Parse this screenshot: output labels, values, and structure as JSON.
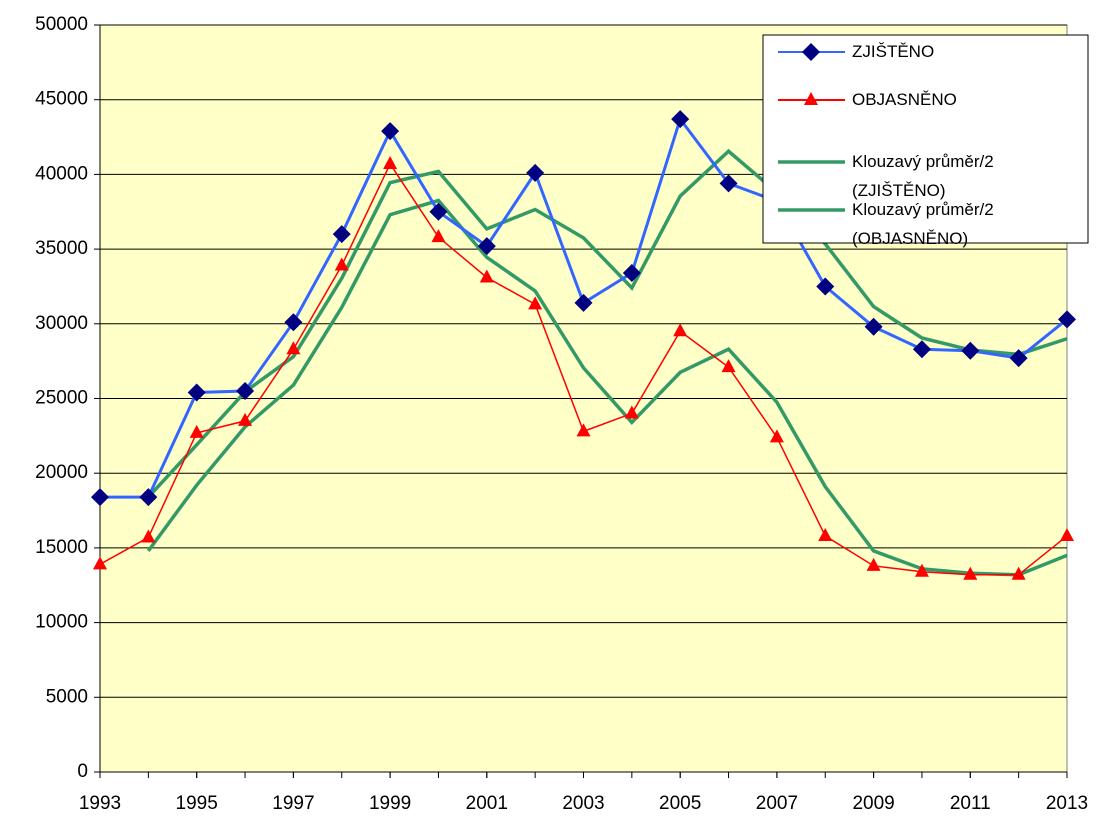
{
  "chart_data": {
    "type": "line",
    "x": [
      1993,
      1994,
      1995,
      1996,
      1997,
      1998,
      1999,
      2000,
      2001,
      2002,
      2003,
      2004,
      2005,
      2006,
      2007,
      2008,
      2009,
      2010,
      2011,
      2012,
      2013
    ],
    "xlim": [
      1993,
      2013
    ],
    "xticks": [
      1993,
      1995,
      1997,
      1999,
      2001,
      2003,
      2005,
      2007,
      2009,
      2011,
      2013
    ],
    "ylim": [
      0,
      50000
    ],
    "yticks": [
      0,
      5000,
      10000,
      15000,
      20000,
      25000,
      30000,
      35000,
      40000,
      45000,
      50000
    ],
    "grid": true,
    "legend": "upper right",
    "series": [
      {
        "name": "ZJIŠTĚNO",
        "color": "#3366ff",
        "marker": "diamond",
        "marker_color": "#000080",
        "values": [
          18400,
          18400,
          25400,
          25500,
          30100,
          36000,
          42900,
          37500,
          35200,
          40100,
          31400,
          33400,
          43700,
          39400,
          38200,
          32500,
          29800,
          28300,
          28200,
          27700,
          30300
        ]
      },
      {
        "name": "OBJASNĚNO",
        "color": "#ff0000",
        "marker": "triangle",
        "marker_color": "#ff0000",
        "values": [
          13900,
          15700,
          22700,
          23500,
          28300,
          33900,
          40700,
          35800,
          33100,
          31300,
          22800,
          24000,
          29500,
          27100,
          22400,
          15800,
          13800,
          13400,
          13200,
          13200,
          15800
        ]
      },
      {
        "name": "Klouzavý průměr/2 (ZJIŠTĚNO)",
        "color": "#339966",
        "values": [
          null,
          18400,
          21900,
          25450,
          27800,
          33050,
          39450,
          40200,
          36350,
          37650,
          35750,
          32400,
          38550,
          41550,
          38800,
          35350,
          31150,
          29050,
          28250,
          27950,
          29000
        ]
      },
      {
        "name": "Klouzavý průměr/2 (OBJASNĚNO)",
        "color": "#339966",
        "values": [
          null,
          14800,
          19200,
          23100,
          25900,
          31100,
          37300,
          38250,
          34450,
          32200,
          27050,
          23400,
          26750,
          28300,
          24750,
          19100,
          14800,
          13600,
          13300,
          13200,
          14500
        ]
      }
    ]
  }
}
